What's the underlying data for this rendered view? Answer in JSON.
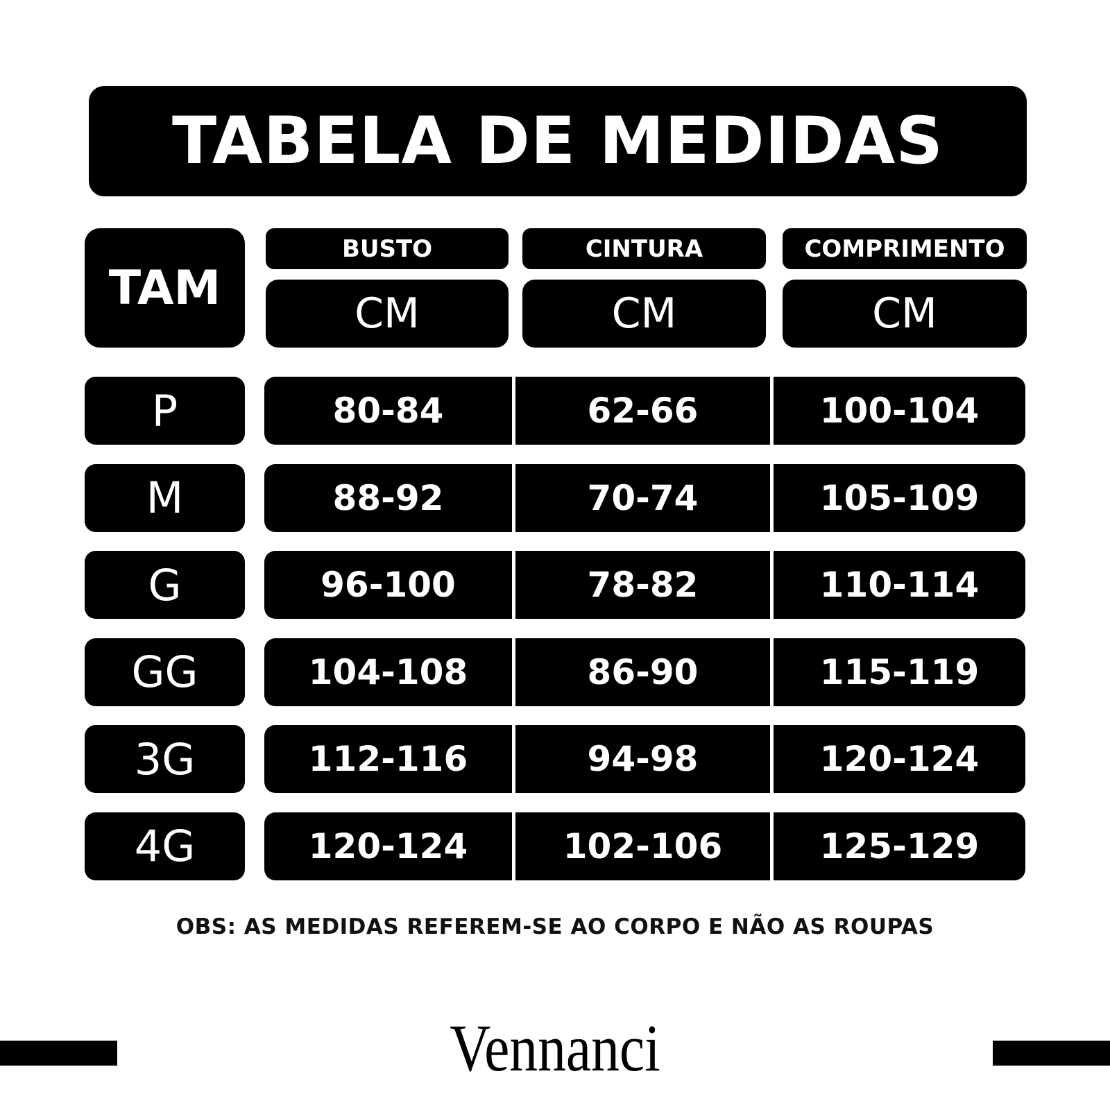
{
  "title": "TABELA DE MEDIDAS",
  "header": {
    "size_label": "TAM",
    "columns": [
      {
        "label": "BUSTO",
        "unit": "CM"
      },
      {
        "label": "CINTURA",
        "unit": "CM"
      },
      {
        "label": "COMPRIMENTO",
        "unit": "CM"
      }
    ]
  },
  "rows": [
    {
      "size": "P",
      "values": [
        "80-84",
        "62-66",
        "100-104"
      ]
    },
    {
      "size": "M",
      "values": [
        "88-92",
        "70-74",
        "105-109"
      ]
    },
    {
      "size": "G",
      "values": [
        "96-100",
        "78-82",
        "110-114"
      ]
    },
    {
      "size": "GG",
      "values": [
        "104-108",
        "86-90",
        "115-119"
      ]
    },
    {
      "size": "3G",
      "values": [
        "112-116",
        "94-98",
        "120-124"
      ]
    },
    {
      "size": "4G",
      "values": [
        "120-124",
        "102-106",
        "125-129"
      ]
    }
  ],
  "note": "OBS: AS MEDIDAS REFEREM-SE AO CORPO E NÃO AS ROUPAS",
  "brand": "Vennanci"
}
